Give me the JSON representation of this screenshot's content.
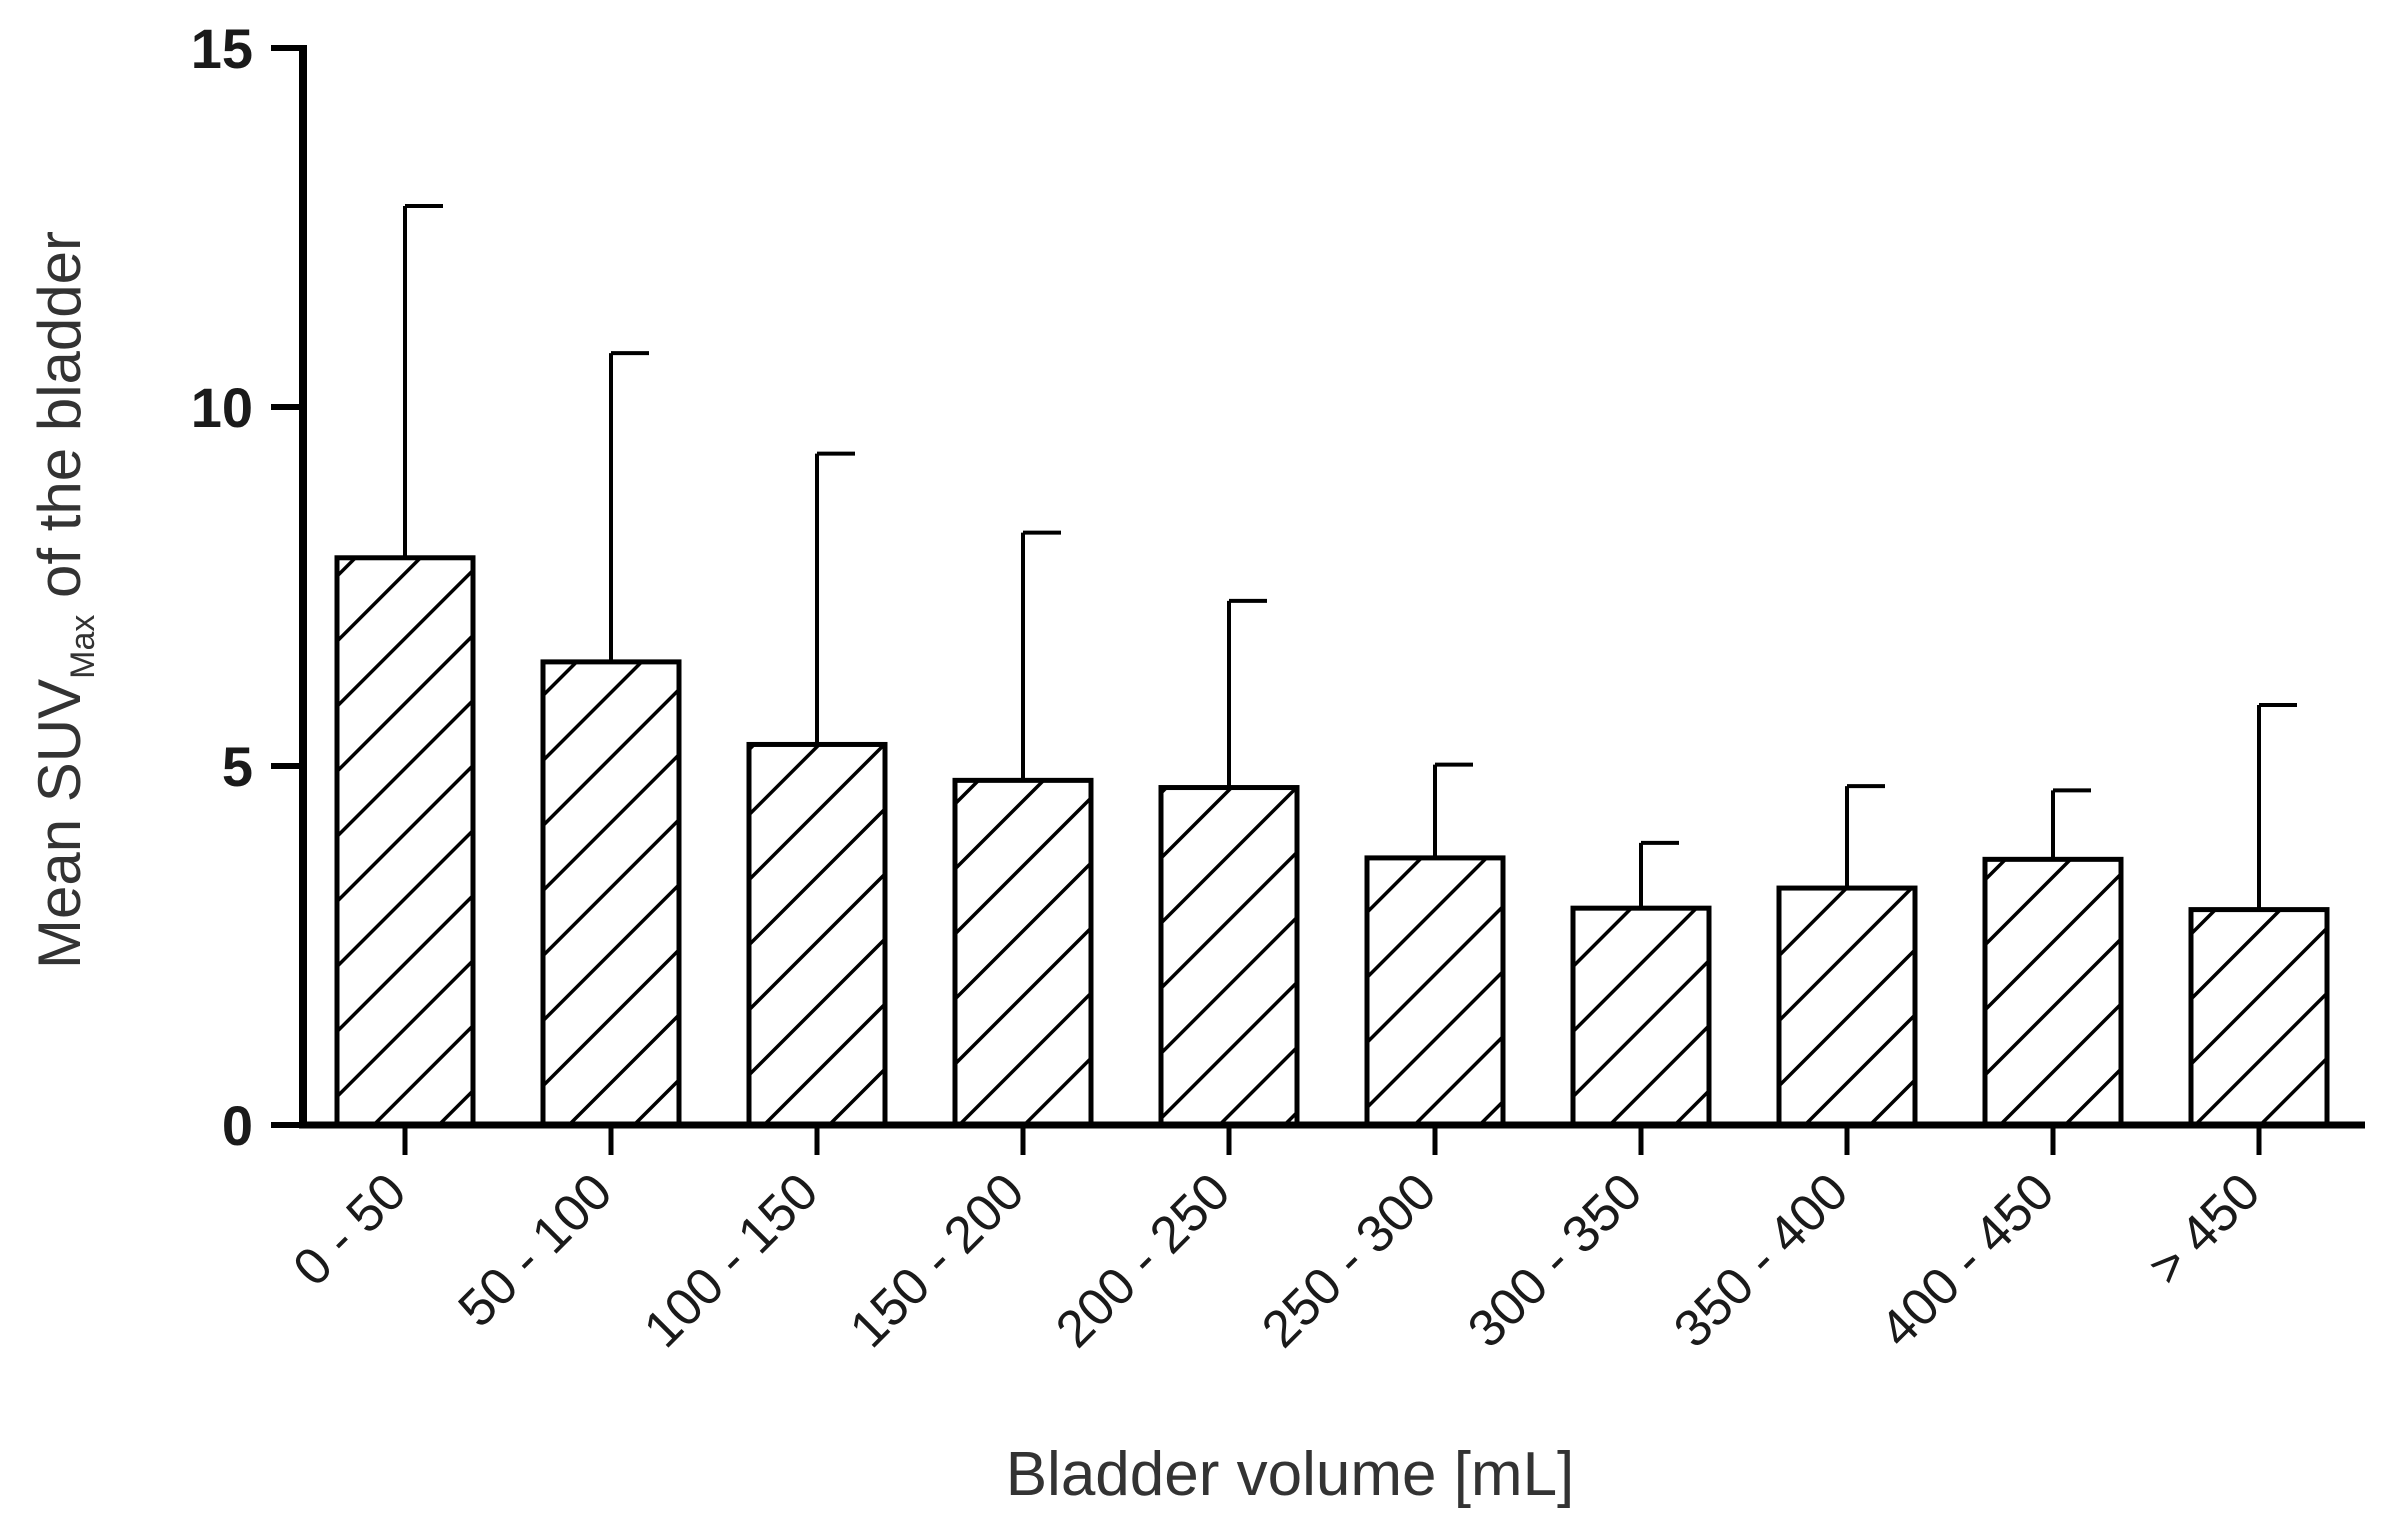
{
  "chart_data": {
    "type": "bar",
    "xlabel": "Bladder volume [mL]",
    "ylabel": {
      "prefix": "Mean SUV",
      "subscript": "Max",
      "suffix": " of the bladder"
    },
    "ylim": [
      0,
      15
    ],
    "yticks": [
      0,
      5,
      10,
      15
    ],
    "categories": [
      "0 - 50",
      "50 - 100",
      "100 - 150",
      "150 - 200",
      "200 - 250",
      "250 - 300",
      "300 - 350",
      "350 - 400",
      "400 - 450",
      "> 450"
    ],
    "values": [
      7.9,
      6.45,
      5.3,
      4.8,
      4.7,
      3.72,
      3.02,
      3.3,
      3.7,
      3.0
    ],
    "error_upper": [
      12.8,
      10.75,
      9.35,
      8.25,
      7.3,
      5.02,
      3.93,
      4.72,
      4.66,
      5.85
    ],
    "bar_fill": "hatched-diagonal",
    "bar_color": "#000000",
    "grid": false,
    "legend": "none"
  }
}
